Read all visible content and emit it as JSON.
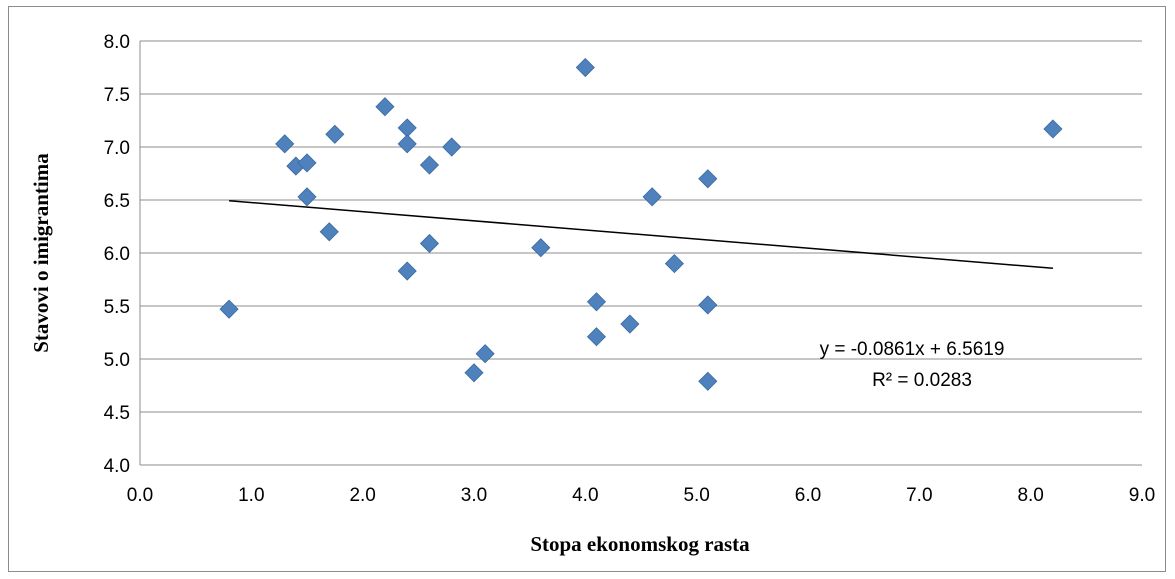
{
  "chart_data": {
    "type": "scatter",
    "xlabel": "Stopa ekonomskog rasta",
    "ylabel": "Stavovi o imigrantima",
    "xlim": [
      0,
      9
    ],
    "ylim": [
      4,
      8
    ],
    "x_ticks": [
      "0.0",
      "1.0",
      "2.0",
      "3.0",
      "4.0",
      "5.0",
      "6.0",
      "7.0",
      "8.0",
      "9.0"
    ],
    "y_ticks": [
      "4.0",
      "4.5",
      "5.0",
      "5.5",
      "6.0",
      "6.5",
      "7.0",
      "7.5",
      "8.0"
    ],
    "grid": "horizontal",
    "marker": "diamond",
    "marker_color": "#4f81bd",
    "points": [
      {
        "x": 0.8,
        "y": 5.47
      },
      {
        "x": 1.3,
        "y": 7.03
      },
      {
        "x": 1.4,
        "y": 6.82
      },
      {
        "x": 1.5,
        "y": 6.85
      },
      {
        "x": 1.5,
        "y": 6.53
      },
      {
        "x": 1.7,
        "y": 6.2
      },
      {
        "x": 1.75,
        "y": 7.12
      },
      {
        "x": 2.2,
        "y": 7.38
      },
      {
        "x": 2.4,
        "y": 7.18
      },
      {
        "x": 2.4,
        "y": 7.03
      },
      {
        "x": 2.4,
        "y": 5.83
      },
      {
        "x": 2.6,
        "y": 6.83
      },
      {
        "x": 2.6,
        "y": 6.09
      },
      {
        "x": 2.8,
        "y": 7.0
      },
      {
        "x": 3.0,
        "y": 4.87
      },
      {
        "x": 3.1,
        "y": 5.05
      },
      {
        "x": 3.6,
        "y": 6.05
      },
      {
        "x": 4.0,
        "y": 7.75
      },
      {
        "x": 4.1,
        "y": 5.54
      },
      {
        "x": 4.1,
        "y": 5.21
      },
      {
        "x": 4.4,
        "y": 5.33
      },
      {
        "x": 4.6,
        "y": 6.53
      },
      {
        "x": 4.8,
        "y": 5.9
      },
      {
        "x": 5.1,
        "y": 6.7
      },
      {
        "x": 5.1,
        "y": 5.51
      },
      {
        "x": 5.1,
        "y": 4.79
      },
      {
        "x": 8.2,
        "y": 7.17
      }
    ],
    "trendline": {
      "slope": -0.0861,
      "intercept": 6.5619,
      "x_range": [
        0.8,
        8.2
      ],
      "color": "#000000",
      "equation_text": "y = -0.0861x + 6.5619",
      "r2_text": "R² = 0.0283"
    }
  }
}
